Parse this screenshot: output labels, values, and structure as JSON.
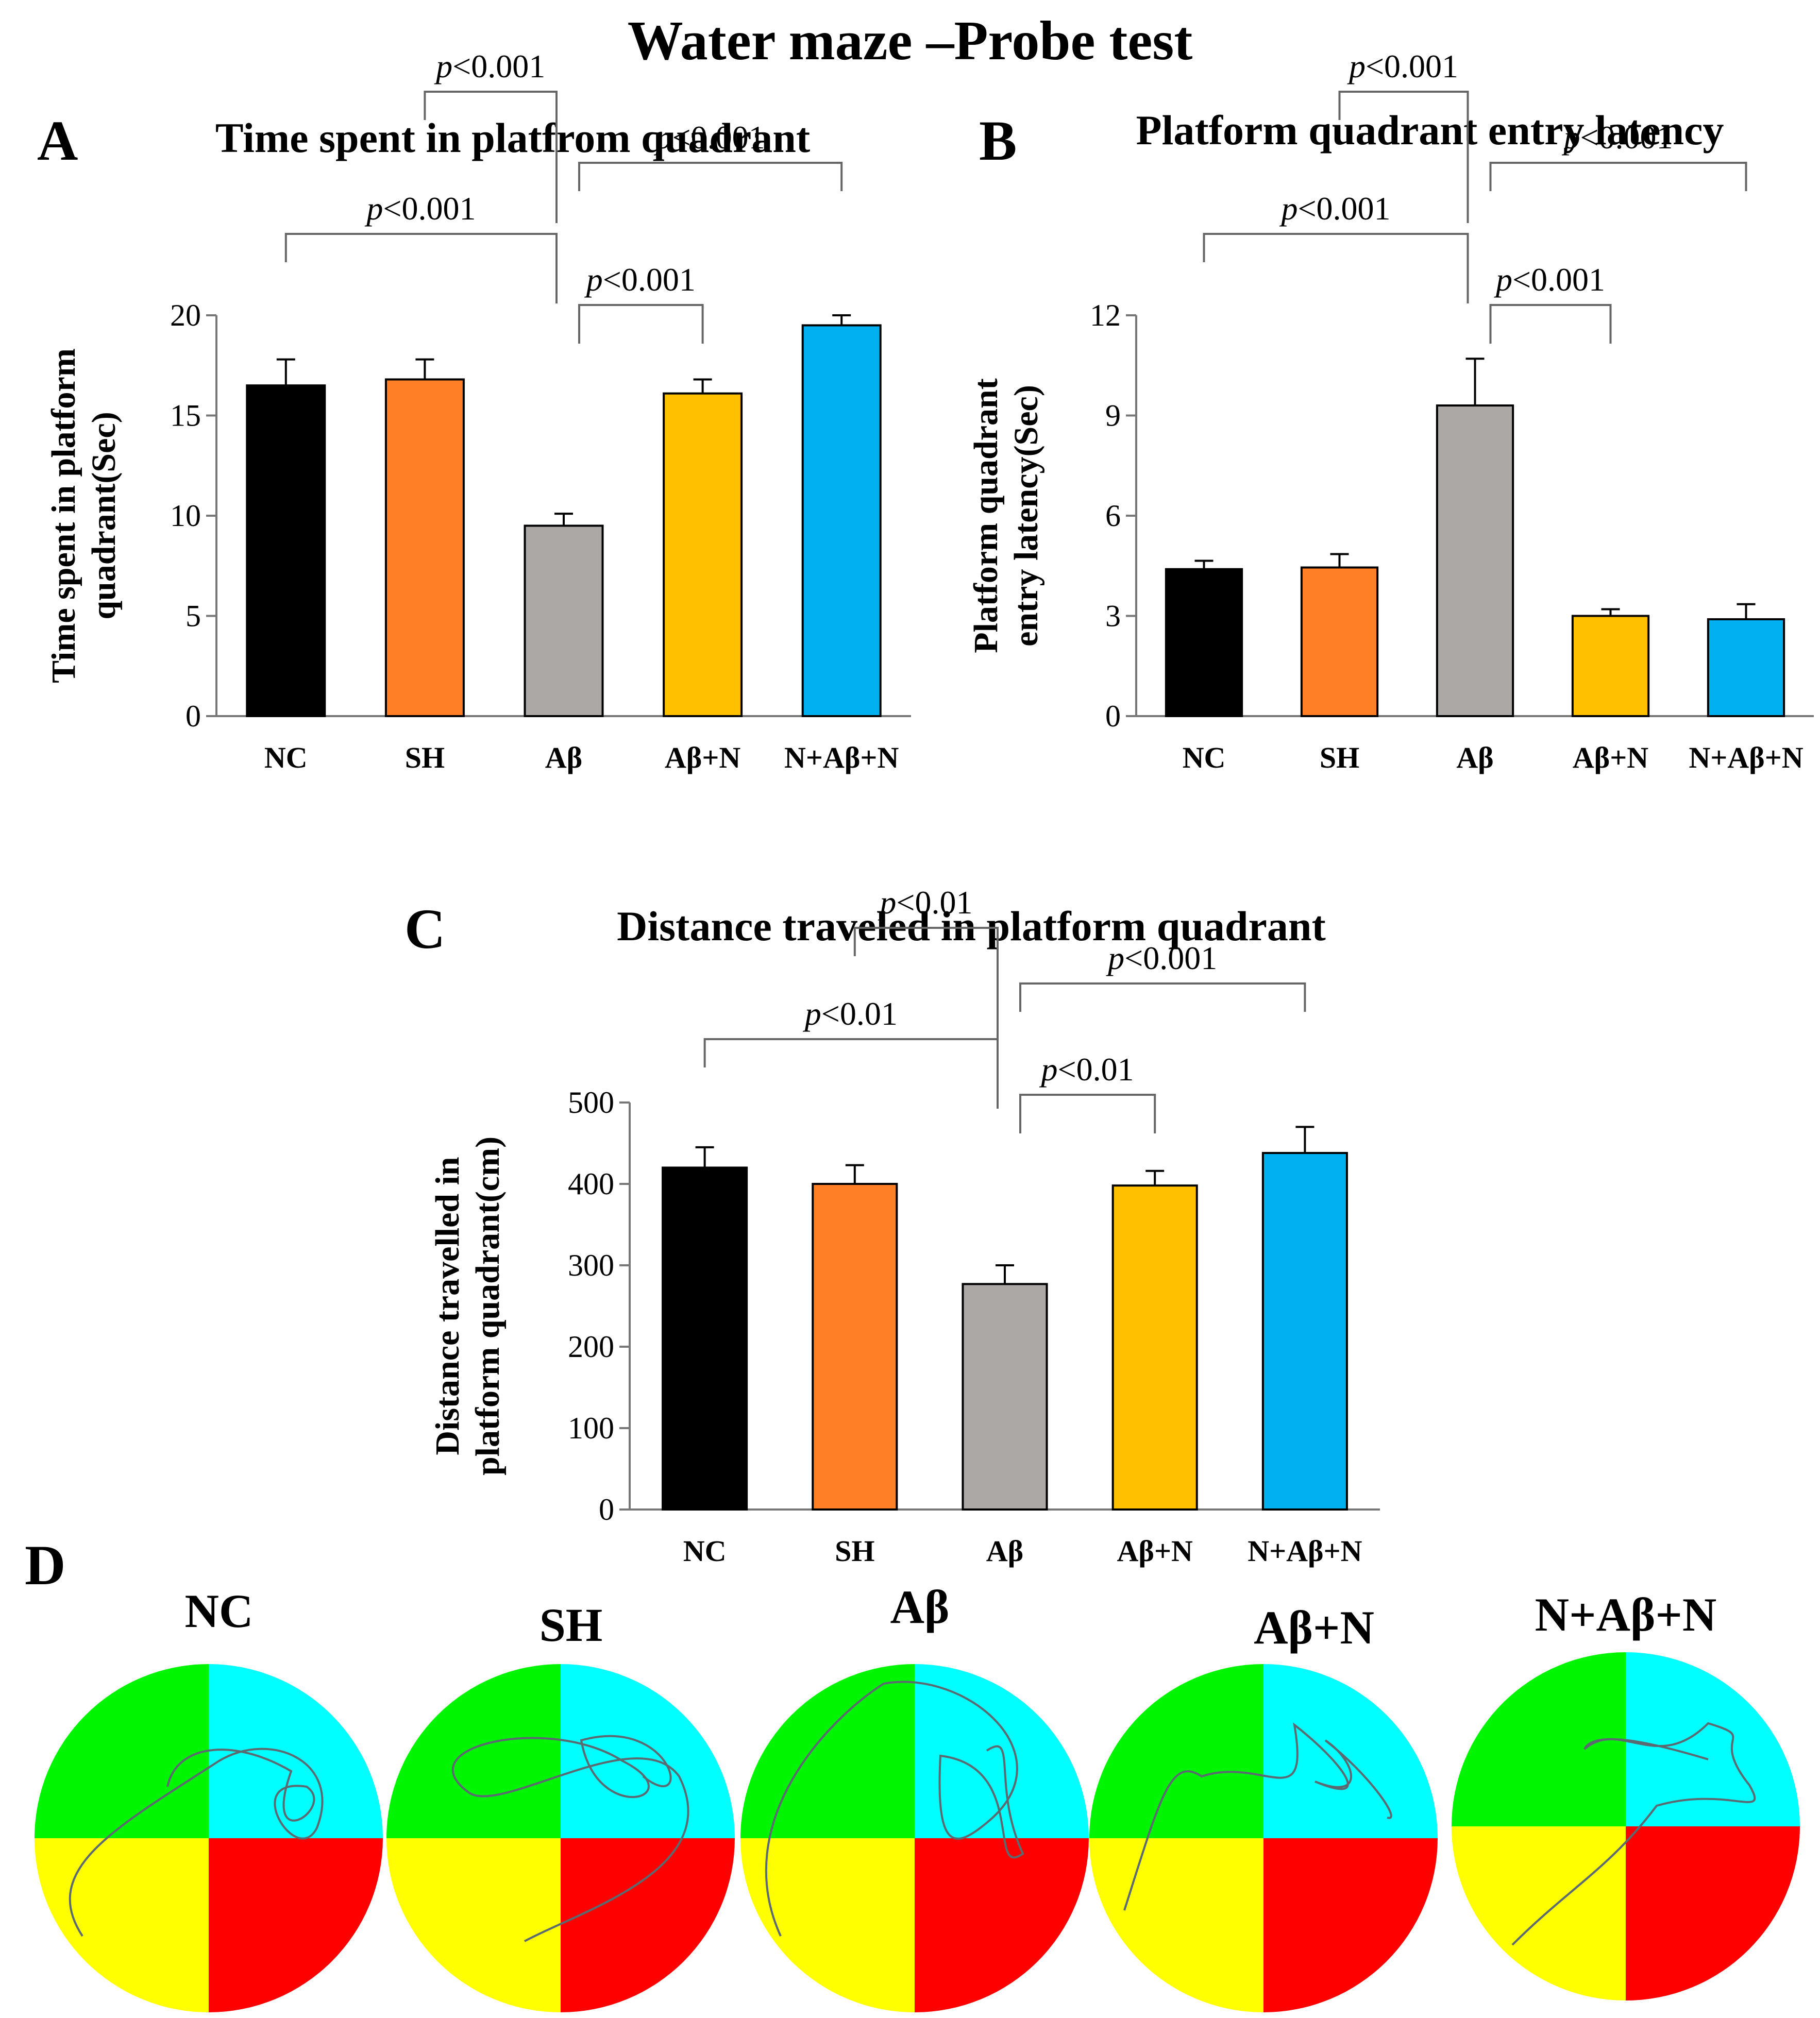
{
  "figure_title": "Water maze –Probe test",
  "colors": {
    "NC": "#000000",
    "SH": "#FF7F27",
    "Ab": "#ABA8A5",
    "AbN": "#FFC000",
    "NAbN": "#00B0F0",
    "quad_green": "#00F500",
    "quad_cyan": "#00FFFF",
    "quad_yellow": "#FFFF00",
    "quad_red": "#FF0000",
    "path": "#5A6A70"
  },
  "chart_data": [
    {
      "panel": "A",
      "type": "bar",
      "title": "Time spent in platfrom quadrant",
      "ylabel": [
        "Time spent in platform",
        "quadrant(Sec)"
      ],
      "xlabel": "",
      "categories": [
        "NC",
        "SH",
        "Aβ",
        "Aβ+N",
        "N+Aβ+N"
      ],
      "values": [
        16.5,
        16.8,
        9.5,
        16.1,
        19.5
      ],
      "errors": [
        1.3,
        1.0,
        0.6,
        0.7,
        0.5
      ],
      "ylim": [
        0,
        20
      ],
      "yticks": [
        0,
        5,
        10,
        15,
        20
      ],
      "comparisons": [
        {
          "from": 0,
          "to": 2,
          "label": "p<0.001",
          "level": 1
        },
        {
          "from": 1,
          "to": 2,
          "label": "p<0.001",
          "level": 3
        },
        {
          "from": 2,
          "to": 3,
          "label": "p<0.001",
          "level": 0
        },
        {
          "from": 2,
          "to": 4,
          "label": "p<0.001",
          "level": 2
        }
      ]
    },
    {
      "panel": "B",
      "type": "bar",
      "title": "Platform quadrant  entry latency",
      "ylabel": [
        "Platform quadrant",
        "entry latency(Sec)"
      ],
      "xlabel": "",
      "categories": [
        "NC",
        "SH",
        "Aβ",
        "Aβ+N",
        "N+Aβ+N"
      ],
      "values": [
        4.4,
        4.45,
        9.3,
        3.0,
        2.9
      ],
      "errors": [
        0.25,
        0.4,
        1.4,
        0.2,
        0.45
      ],
      "ylim": [
        0,
        12
      ],
      "yticks": [
        0,
        3,
        6,
        9,
        12
      ],
      "comparisons": [
        {
          "from": 0,
          "to": 2,
          "label": "p<0.001",
          "level": 1
        },
        {
          "from": 1,
          "to": 2,
          "label": "p<0.001",
          "level": 3
        },
        {
          "from": 2,
          "to": 3,
          "label": "p<0.001",
          "level": 0
        },
        {
          "from": 2,
          "to": 4,
          "label": "p<0.001",
          "level": 2
        }
      ]
    },
    {
      "panel": "C",
      "type": "bar",
      "title": "Distance traveled  in platform quadrant",
      "ylabel": [
        "Distance travelled  in",
        "platform quadrant(cm)"
      ],
      "xlabel": "",
      "categories": [
        "NC",
        "SH",
        "Aβ",
        "Aβ+N",
        "N+Aβ+N"
      ],
      "values": [
        420,
        400,
        277,
        398,
        438
      ],
      "errors": [
        25,
        23,
        23,
        18,
        32
      ],
      "ylim": [
        0,
        500
      ],
      "yticks": [
        0,
        100,
        200,
        300,
        400,
        500
      ],
      "comparisons": [
        {
          "from": 0,
          "to": 2,
          "label": "p<0.01",
          "level": 1
        },
        {
          "from": 1,
          "to": 2,
          "label": "p<0.01",
          "level": 3
        },
        {
          "from": 2,
          "to": 3,
          "label": "p<0.01",
          "level": 0
        },
        {
          "from": 2,
          "to": 4,
          "label": "p<0.001",
          "level": 2
        }
      ]
    }
  ],
  "panel_d": {
    "letter": "D",
    "pools": [
      {
        "label": "NC"
      },
      {
        "label": "SH"
      },
      {
        "label": "Aβ"
      },
      {
        "label": "Aβ+N"
      },
      {
        "label": "N+Aβ+N"
      }
    ]
  }
}
